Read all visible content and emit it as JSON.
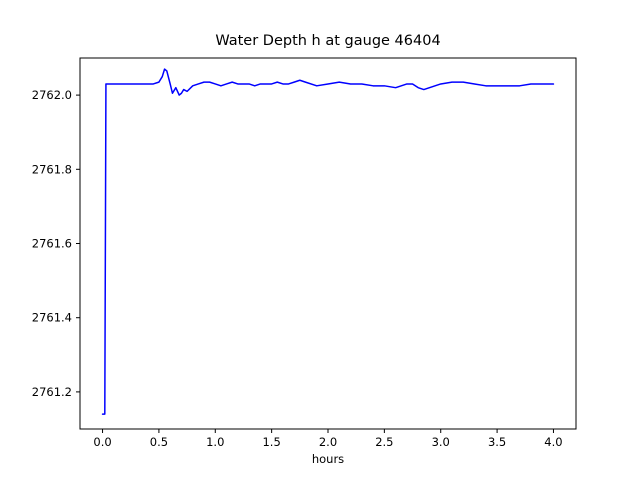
{
  "figure": {
    "background": "#ffffff"
  },
  "chart_data": {
    "type": "line",
    "title": "Water Depth h at gauge 46404",
    "xlabel": "hours",
    "ylabel": "",
    "xlim": [
      -0.2,
      4.2
    ],
    "ylim": [
      2761.1,
      2762.1
    ],
    "xticks": [
      0.0,
      0.5,
      1.0,
      1.5,
      2.0,
      2.5,
      3.0,
      3.5,
      4.0
    ],
    "xtick_labels": [
      "0.0",
      "0.5",
      "1.0",
      "1.5",
      "2.0",
      "2.5",
      "3.0",
      "3.5",
      "4.0"
    ],
    "yticks": [
      2761.2,
      2761.4,
      2761.6,
      2761.8,
      2762.0
    ],
    "ytick_labels": [
      "2761.2",
      "2761.4",
      "2761.6",
      "2761.8",
      "2762.0"
    ],
    "grid": false,
    "legend_position": "none",
    "line_color": "#0000ff",
    "line_width": 1.5,
    "series": [
      {
        "name": "h",
        "x": [
          0.0,
          0.02,
          0.03,
          0.1,
          0.2,
          0.3,
          0.4,
          0.45,
          0.5,
          0.53,
          0.55,
          0.57,
          0.6,
          0.62,
          0.65,
          0.68,
          0.7,
          0.72,
          0.75,
          0.8,
          0.85,
          0.9,
          0.95,
          1.0,
          1.05,
          1.1,
          1.15,
          1.2,
          1.3,
          1.35,
          1.4,
          1.5,
          1.55,
          1.6,
          1.65,
          1.7,
          1.75,
          1.8,
          1.9,
          2.0,
          2.1,
          2.2,
          2.3,
          2.4,
          2.5,
          2.6,
          2.7,
          2.75,
          2.8,
          2.85,
          2.9,
          3.0,
          3.1,
          3.2,
          3.3,
          3.4,
          3.5,
          3.6,
          3.7,
          3.8,
          3.9,
          4.0
        ],
        "y": [
          2761.14,
          2761.14,
          2762.03,
          2762.03,
          2762.03,
          2762.03,
          2762.03,
          2762.03,
          2762.035,
          2762.05,
          2762.07,
          2762.065,
          2762.03,
          2762.005,
          2762.02,
          2762.0,
          2762.005,
          2762.015,
          2762.01,
          2762.025,
          2762.03,
          2762.035,
          2762.035,
          2762.03,
          2762.025,
          2762.03,
          2762.035,
          2762.03,
          2762.03,
          2762.025,
          2762.03,
          2762.03,
          2762.035,
          2762.03,
          2762.03,
          2762.035,
          2762.04,
          2762.035,
          2762.025,
          2762.03,
          2762.035,
          2762.03,
          2762.03,
          2762.025,
          2762.025,
          2762.02,
          2762.03,
          2762.03,
          2762.02,
          2762.015,
          2762.02,
          2762.03,
          2762.035,
          2762.035,
          2762.03,
          2762.025,
          2762.025,
          2762.025,
          2762.025,
          2762.03,
          2762.03,
          2762.03
        ]
      }
    ]
  }
}
